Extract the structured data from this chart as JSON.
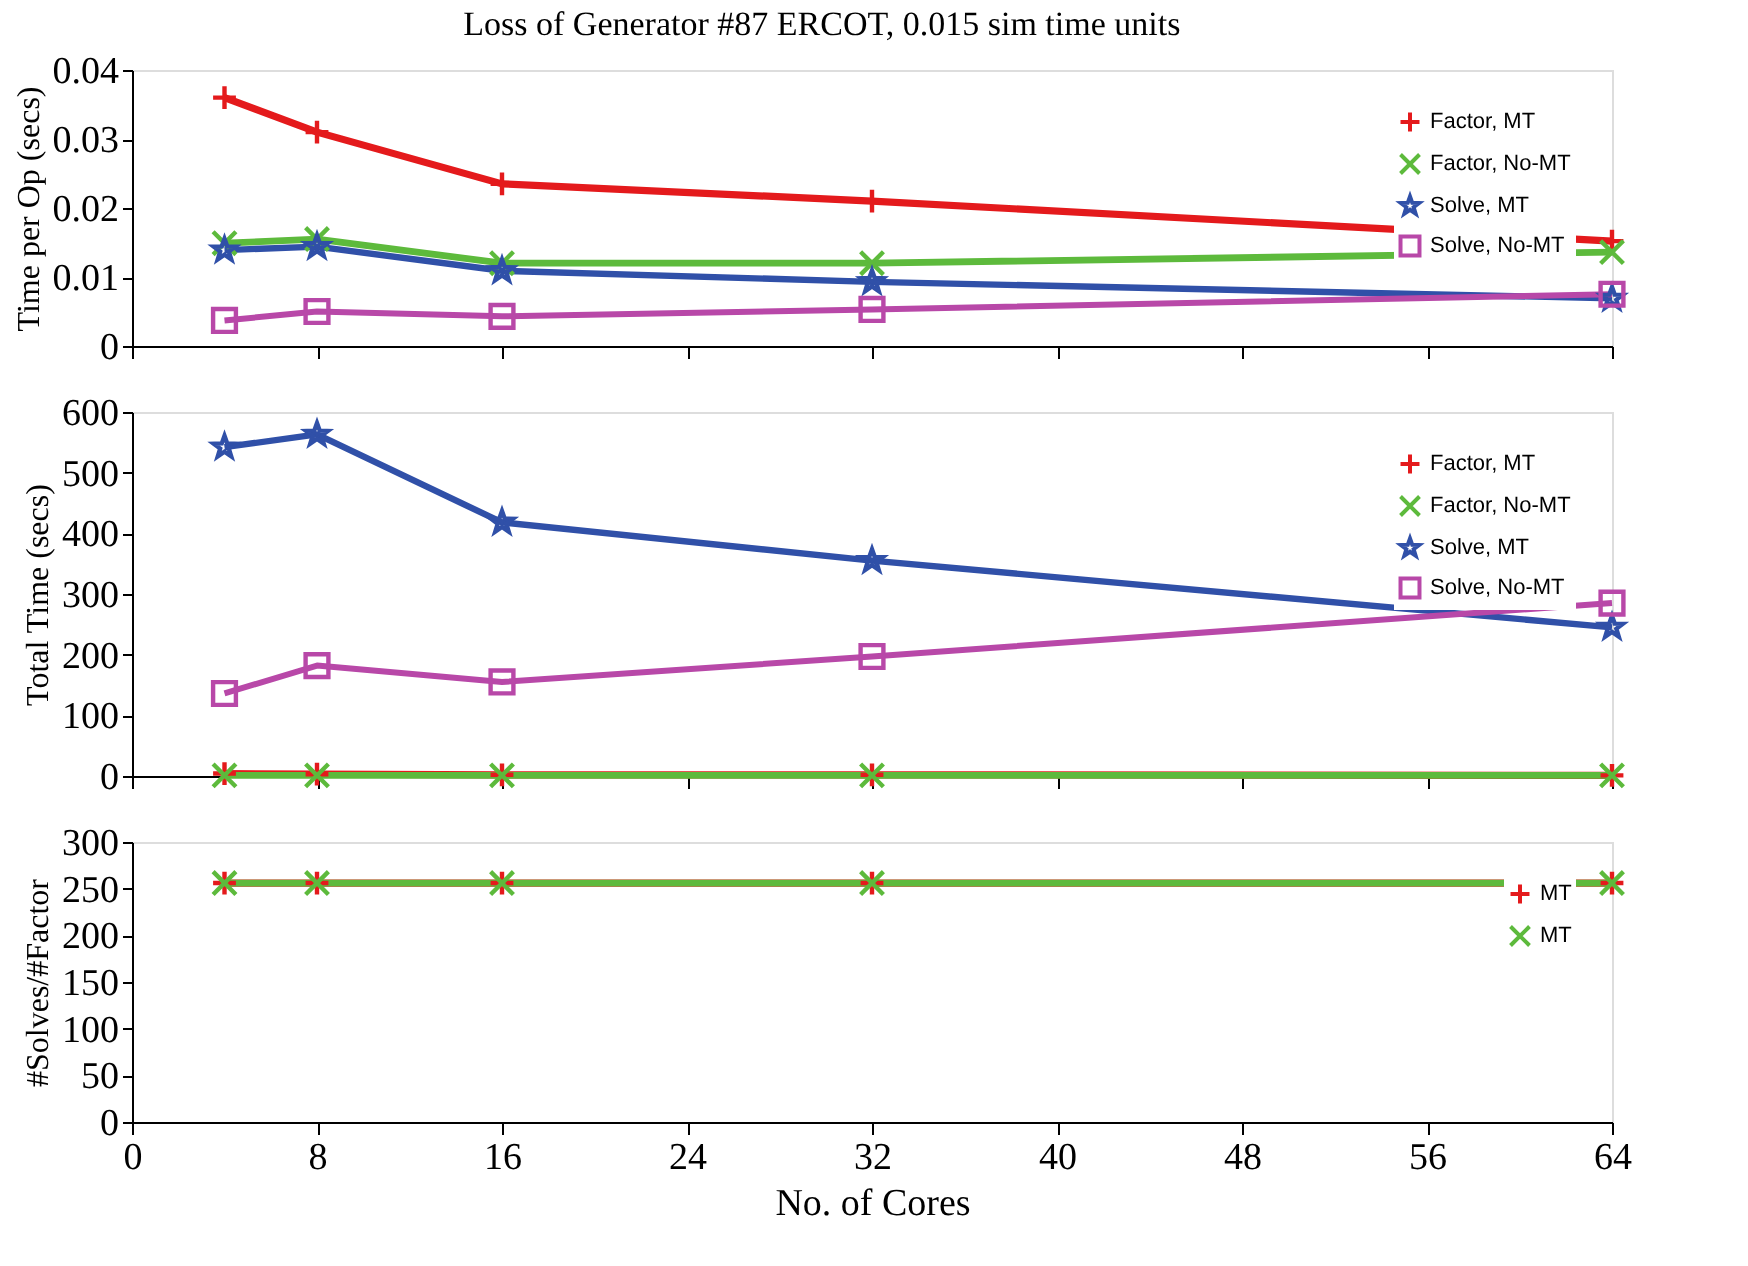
{
  "chart_data": [
    {
      "type": "line",
      "title": "Loss of Generator #87 ERCOT, 0.015 sim time units",
      "ylabel": "Time per Op (secs)",
      "x": [
        4,
        8,
        16,
        32,
        64
      ],
      "xlim": [
        0,
        64
      ],
      "xticks": [
        0,
        8,
        16,
        24,
        32,
        40,
        48,
        56,
        64
      ],
      "ylim": [
        0,
        0.04
      ],
      "yticks": [
        0,
        0.01,
        0.02,
        0.03,
        0.04
      ],
      "tick_labels": "y",
      "grid": false,
      "legend": "top right",
      "series": [
        {
          "name": "Factor, MT",
          "color": "#e41a1c",
          "marker": "cross",
          "values": [
            0.036,
            0.031,
            0.0235,
            0.021,
            0.0152
          ]
        },
        {
          "name": "Factor, No-MT",
          "color": "#5dba3c",
          "marker": "x",
          "values": [
            0.0149,
            0.0155,
            0.012,
            0.012,
            0.0136
          ]
        },
        {
          "name": "Solve, MT",
          "color": "#3050a8",
          "marker": "star",
          "values": [
            0.0139,
            0.0144,
            0.0109,
            0.0093,
            0.0069
          ]
        },
        {
          "name": "Solve, No-MT",
          "color": "#b848a8",
          "marker": "square",
          "values": [
            0.0037,
            0.005,
            0.0043,
            0.0053,
            0.0075
          ]
        }
      ]
    },
    {
      "type": "line",
      "ylabel": "Total Time (secs)",
      "x": [
        4,
        8,
        16,
        32,
        64
      ],
      "xlim": [
        0,
        64
      ],
      "xticks": [
        0,
        8,
        16,
        24,
        32,
        40,
        48,
        56,
        64
      ],
      "ylim": [
        0,
        600
      ],
      "yticks": [
        0,
        100,
        200,
        300,
        400,
        500,
        600
      ],
      "tick_labels": "y",
      "grid": false,
      "legend": "top right",
      "series": [
        {
          "name": "Factor, MT",
          "color": "#e41a1c",
          "marker": "cross",
          "values": [
            4,
            3,
            2,
            2,
            1
          ]
        },
        {
          "name": "Factor, No-MT",
          "color": "#5dba3c",
          "marker": "x",
          "values": [
            1,
            1,
            1,
            1,
            1
          ]
        },
        {
          "name": "Solve, MT",
          "color": "#3050a8",
          "marker": "star",
          "values": [
            542,
            563,
            418,
            355,
            245
          ]
        },
        {
          "name": "Solve, No-MT",
          "color": "#b848a8",
          "marker": "square",
          "values": [
            136,
            182,
            155,
            197,
            285
          ]
        }
      ]
    },
    {
      "type": "line",
      "ylabel": "#Solves/#Factor",
      "xlabel": "No. of Cores",
      "x": [
        4,
        8,
        16,
        32,
        64
      ],
      "xlim": [
        0,
        64
      ],
      "xticks": [
        0,
        8,
        16,
        24,
        32,
        40,
        48,
        56,
        64
      ],
      "ylim": [
        0,
        300
      ],
      "yticks": [
        0,
        50,
        100,
        150,
        200,
        250,
        300
      ],
      "grid": false,
      "legend": "top right",
      "series": [
        {
          "name": "MT",
          "color": "#e41a1c",
          "marker": "cross",
          "values": [
            256,
            256,
            256,
            256,
            256
          ]
        },
        {
          "name": "MT",
          "color": "#5dba3c",
          "marker": "x",
          "values": [
            256,
            256,
            256,
            256,
            256
          ]
        }
      ]
    }
  ]
}
